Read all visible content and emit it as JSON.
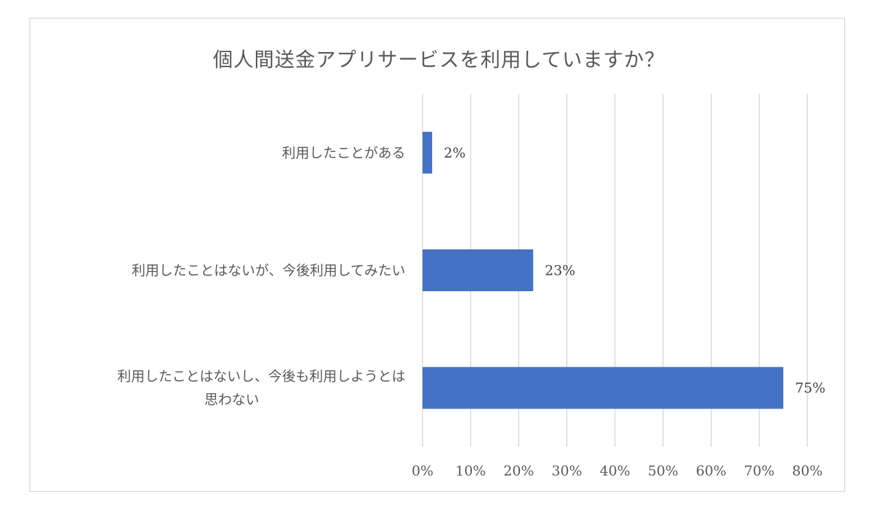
{
  "chart_data": {
    "type": "bar",
    "orientation": "horizontal",
    "title": "個人間送金アプリサービスを利用していますか？",
    "categories": [
      [
        "利用したことがある"
      ],
      [
        "利用したことはないが、今後利用してみたい"
      ],
      [
        "利用したことはないし、今後も利用しようとは",
        "思わない"
      ]
    ],
    "values": [
      2,
      23,
      75
    ],
    "data_labels": [
      "2%",
      "23%",
      "75%"
    ],
    "xlim": [
      0,
      80
    ],
    "x_ticks": [
      0,
      10,
      20,
      30,
      40,
      50,
      60,
      70,
      80
    ],
    "x_tick_labels": [
      "0%",
      "10%",
      "20%",
      "30%",
      "40%",
      "50%",
      "60%",
      "70%",
      "80%"
    ],
    "grid": "vertical",
    "legend": "none",
    "bar_color": "#4472C4",
    "grid_color": "#d9d9d9"
  }
}
